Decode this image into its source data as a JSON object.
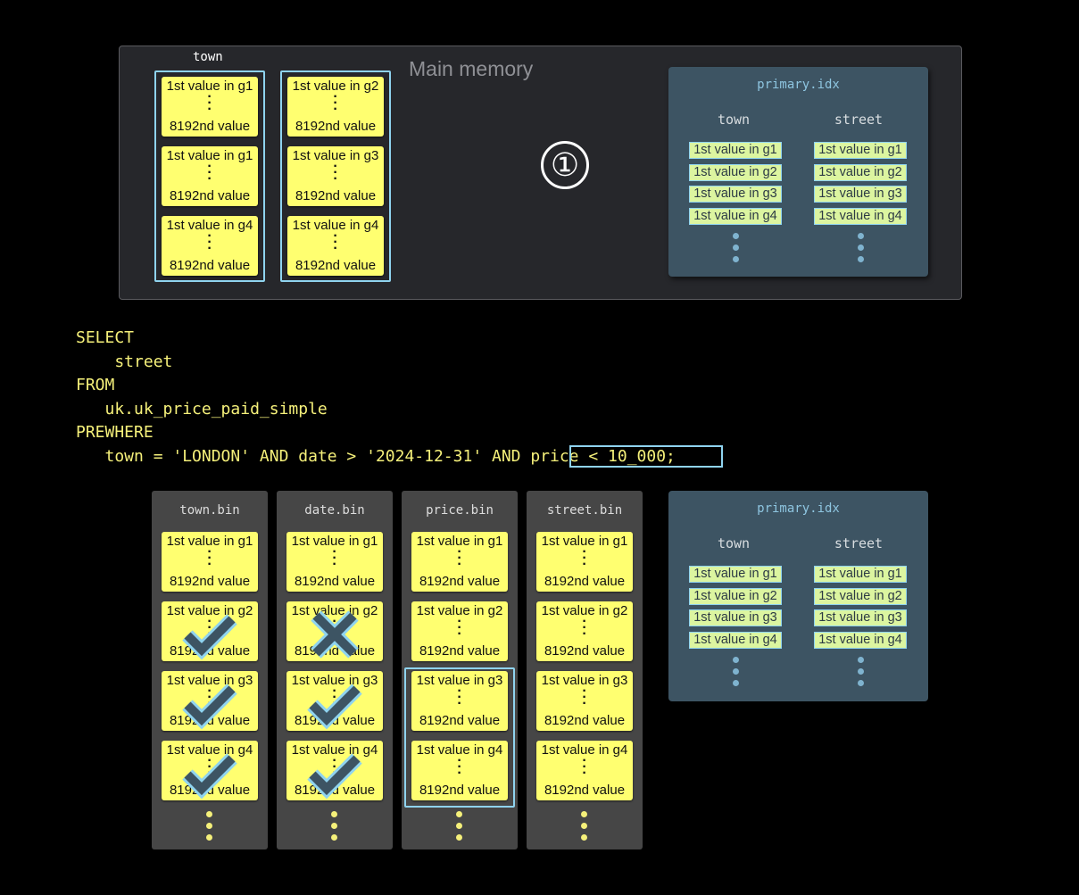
{
  "top_panel": {
    "label": "Main memory",
    "column_label": "town",
    "step": "①",
    "groups": [
      [
        {
          "first": "1st value in g1",
          "last": "8192nd value"
        },
        {
          "first": "1st value in g1",
          "last": "8192nd value"
        },
        {
          "first": "1st value in g4",
          "last": "8192nd value"
        }
      ],
      [
        {
          "first": "1st value in g2",
          "last": "8192nd value"
        },
        {
          "first": "1st value in g3",
          "last": "8192nd value"
        },
        {
          "first": "1st value in g4",
          "last": "8192nd value"
        }
      ]
    ]
  },
  "primary_idx": {
    "title": "primary.idx",
    "columns": [
      {
        "name": "town",
        "entries": [
          "1st value in g1",
          "1st value in g2",
          "1st value in g3",
          "1st value in g4"
        ]
      },
      {
        "name": "street",
        "entries": [
          "1st value in g1",
          "1st value in g2",
          "1st value in g3",
          "1st value in g4"
        ]
      }
    ]
  },
  "sql": {
    "lines": [
      "SELECT",
      "    street",
      "FROM",
      "   uk.uk_price_paid_simple",
      "PREWHERE",
      "   town = 'LONDON' AND date > '2024-12-31' AND price < 10_000;"
    ],
    "highlight": "price < 10_000"
  },
  "columns": [
    {
      "name": "town.bin",
      "marks": [
        "",
        "check",
        "check",
        "check"
      ]
    },
    {
      "name": "date.bin",
      "marks": [
        "",
        "cross",
        "check",
        "check"
      ]
    },
    {
      "name": "price.bin",
      "marks": [
        "",
        "",
        "",
        ""
      ]
    },
    {
      "name": "street.bin",
      "marks": [
        "",
        "",
        "",
        ""
      ]
    }
  ],
  "granules": [
    {
      "first": "1st value in g1",
      "last": "8192nd value"
    },
    {
      "first": "1st value in g2",
      "last": "8192nd value"
    },
    {
      "first": "1st value in g3",
      "last": "8192nd value"
    },
    {
      "first": "1st value in g4",
      "last": "8192nd value"
    }
  ],
  "colors": {
    "card": "#ffff70",
    "highlight": "#8fd3ef",
    "sql": "#f5f07a",
    "index_bg": "#3d5463"
  }
}
